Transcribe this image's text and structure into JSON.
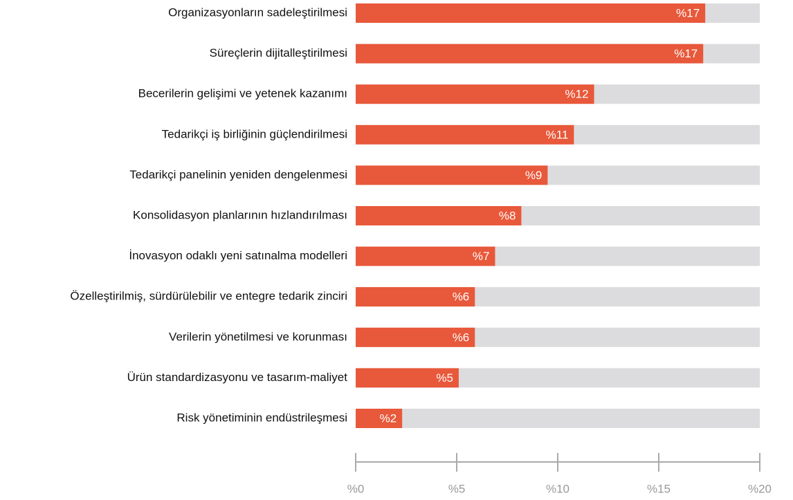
{
  "chart_data": {
    "type": "barh",
    "categories": [
      "Organizasyonların sadeleştirilmesi",
      "Süreçlerin dijitalleştirilmesi",
      "Becerilerin gelişimi ve yetenek kazanımı",
      "Tedarikçi iş birliğinin güçlendirilmesi",
      "Tedarikçi panelinin yeniden dengelenmesi",
      "Konsolidasyon planlarının hızlandırılması",
      "İnovasyon odaklı yeni satınalma modelleri",
      "Özelleştirilmiş, sürdürülebilir ve entegre tedarik zinciri",
      "Verilerin yönetilmesi ve korunması",
      "Ürün standardizasyonu ve tasarım-maliyet",
      "Risk yönetiminin endüstrileşmesi"
    ],
    "values": [
      17.3,
      17.2,
      11.8,
      10.8,
      9.5,
      8.2,
      6.9,
      5.9,
      5.9,
      5.1,
      2.3
    ],
    "value_labels": [
      "%17",
      "%17",
      "%12",
      "%11",
      "%9",
      "%8",
      "%7",
      "%6",
      "%6",
      "%5",
      "%2"
    ],
    "color": "#e8583a",
    "track_color": "#dcdcde",
    "xlim": [
      0,
      20
    ],
    "xticks": [
      {
        "value": 0,
        "label": "%0"
      },
      {
        "value": 5,
        "label": "%5"
      },
      {
        "value": 10,
        "label": "%10"
      },
      {
        "value": 15,
        "label": "%15"
      },
      {
        "value": 20,
        "label": "%20"
      }
    ]
  }
}
